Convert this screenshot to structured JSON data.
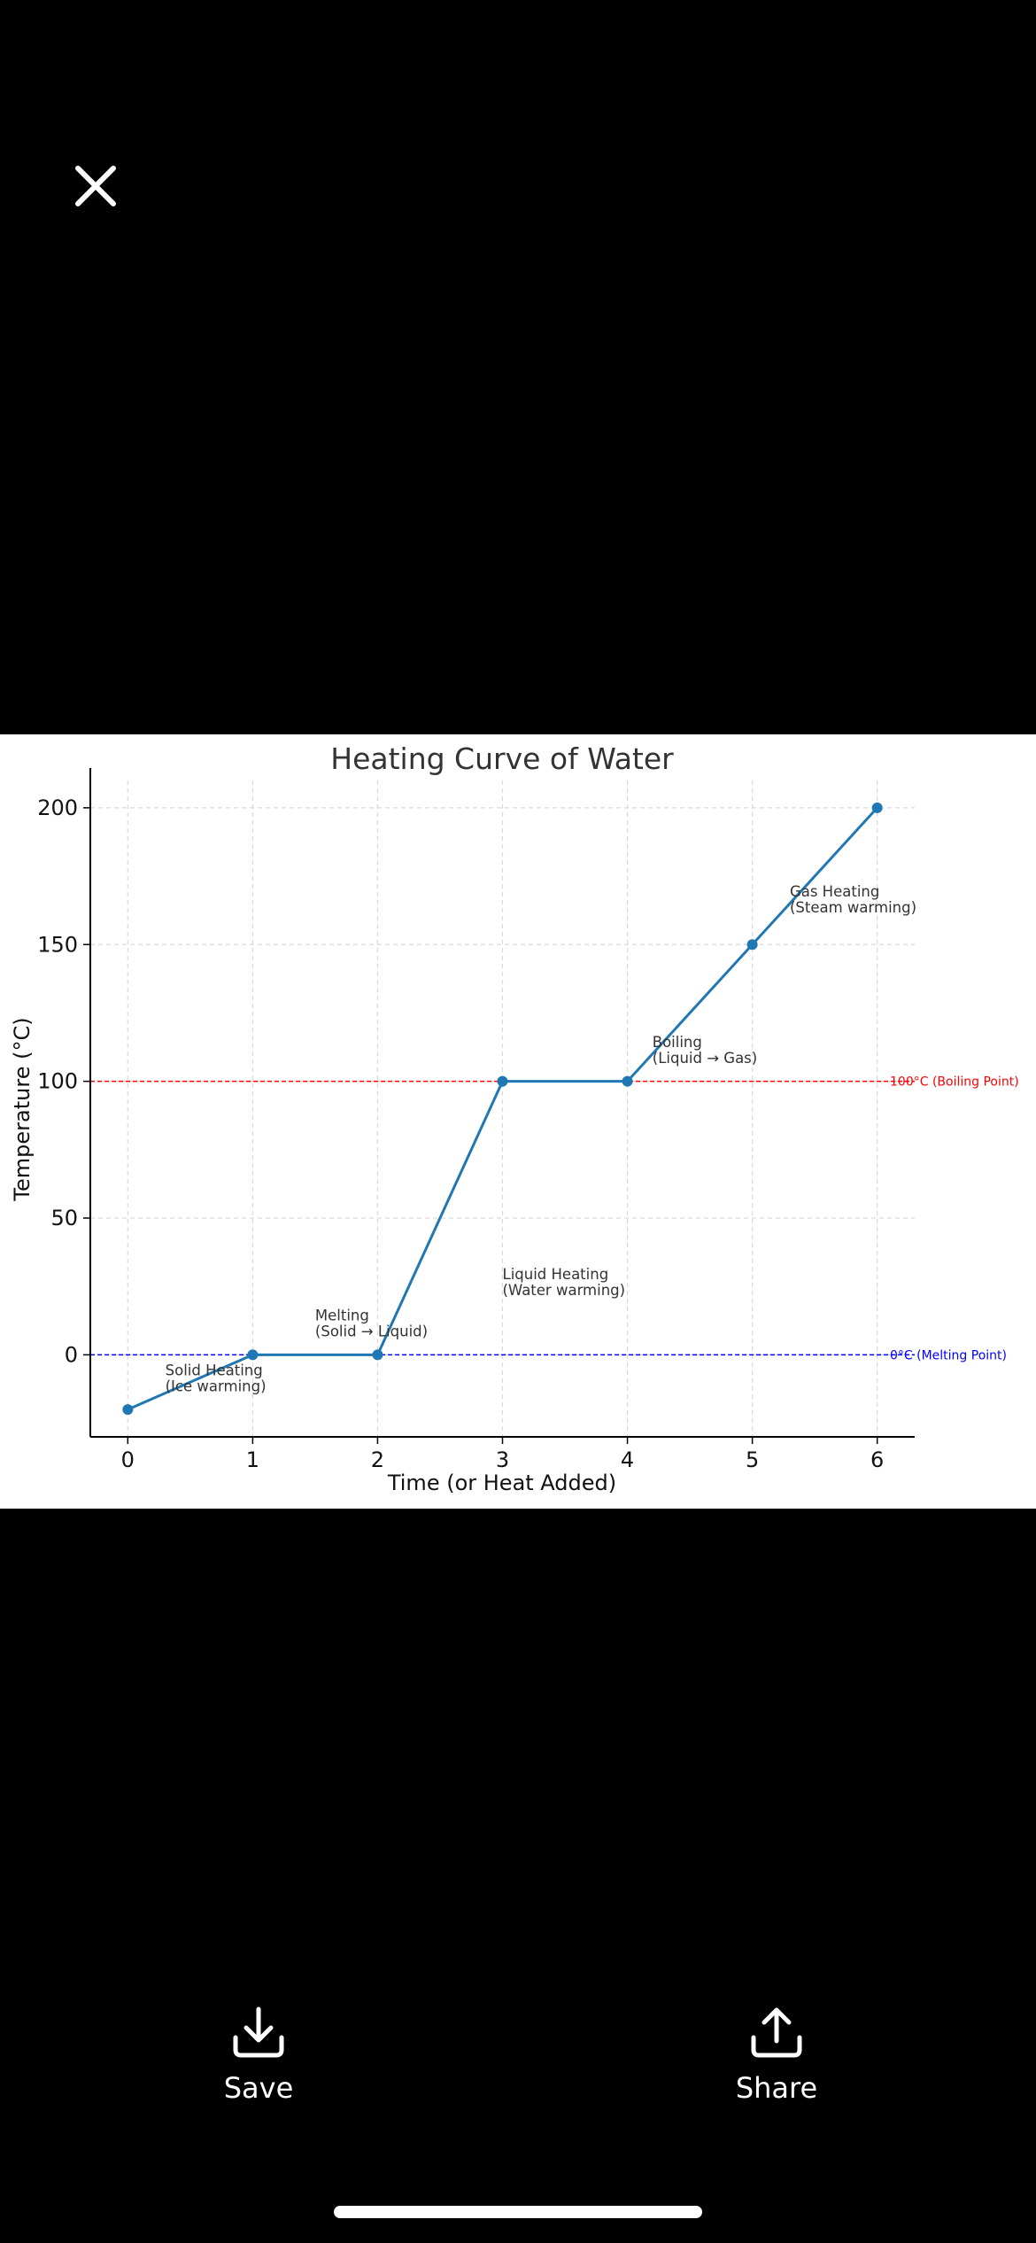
{
  "toolbar": {
    "close_icon": "close-icon"
  },
  "actions": {
    "save": {
      "label": "Save",
      "icon": "download-icon"
    },
    "share": {
      "label": "Share",
      "icon": "share-icon"
    }
  },
  "colors": {
    "line": "#1f77b4",
    "boiling": "#ff0000",
    "melting": "#0000ff",
    "grid": "#d9d9d9",
    "text": "#333333"
  },
  "chart_data": {
    "type": "line",
    "title": "Heating Curve of Water",
    "xlabel": "Time (or Heat Added)",
    "ylabel": "Temperature (°C)",
    "xlim": [
      -0.3,
      6.3
    ],
    "ylim": [
      -30,
      210
    ],
    "xticks": [
      0,
      1,
      2,
      3,
      4,
      5,
      6
    ],
    "yticks": [
      0,
      50,
      100,
      150,
      200
    ],
    "grid": true,
    "x": [
      0,
      1,
      2,
      3,
      4,
      5,
      6
    ],
    "y": [
      -20,
      0,
      0,
      100,
      100,
      150,
      200
    ],
    "reference_lines": [
      {
        "y": 100,
        "label": "100°C (Boiling Point)",
        "color": "#ff0000"
      },
      {
        "y": 0,
        "label": "0°C (Melting Point)",
        "color": "#0000ff"
      }
    ],
    "annotations": [
      {
        "x": 0.3,
        "y": -10,
        "lines": [
          "Solid Heating",
          "(Ice warming)"
        ]
      },
      {
        "x": 1.5,
        "y": 10,
        "lines": [
          "Melting",
          "(Solid → Liquid)"
        ]
      },
      {
        "x": 3.0,
        "y": 25,
        "lines": [
          "Liquid Heating",
          "(Water warming)"
        ]
      },
      {
        "x": 4.2,
        "y": 110,
        "lines": [
          "Boiling",
          "(Liquid → Gas)"
        ]
      },
      {
        "x": 5.3,
        "y": 165,
        "lines": [
          "Gas Heating",
          "(Steam warming)"
        ]
      }
    ]
  }
}
